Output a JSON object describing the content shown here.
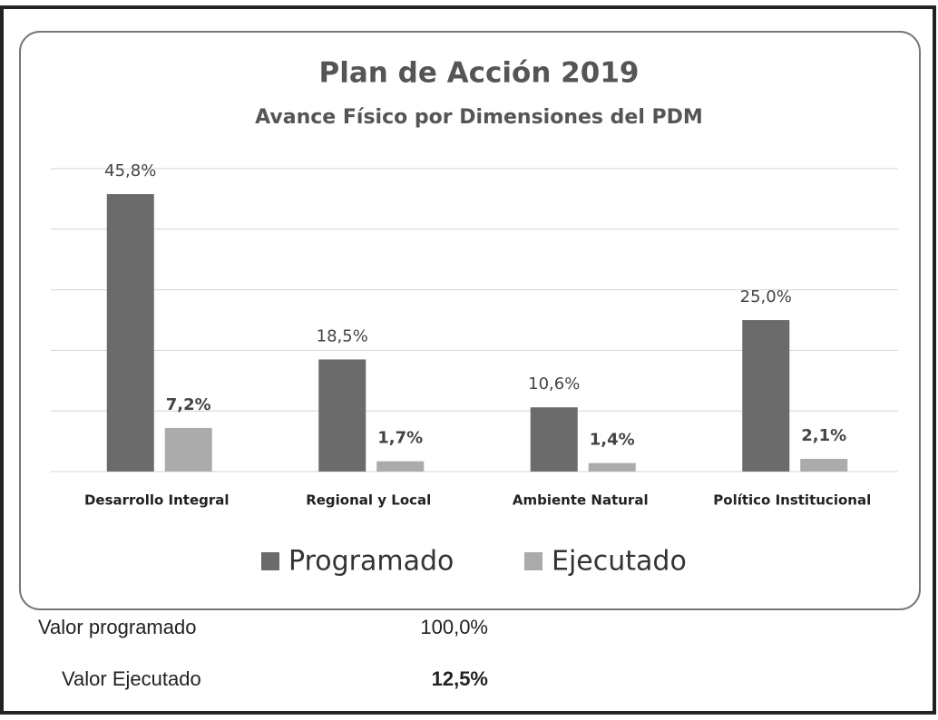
{
  "chart_data": {
    "type": "bar",
    "title": "Plan de Acción 2019",
    "subtitle": "Avance Físico por Dimensiones del PDM",
    "categories": [
      "Desarrollo Integral",
      "Regional y Local",
      "Ambiente Natural",
      "Político Institucional"
    ],
    "series": [
      {
        "name": "Programado",
        "color": "#6b6b6b",
        "values": [
          45.8,
          18.5,
          10.6,
          25.0
        ],
        "value_labels": [
          "45,8%",
          "18,5%",
          "10,6%",
          "25,0%"
        ]
      },
      {
        "name": "Ejecutado",
        "color": "#ababab",
        "values": [
          7.2,
          1.7,
          1.4,
          2.1
        ],
        "value_labels": [
          "7,2%",
          "1,7%",
          "1,4%",
          "2,1%"
        ]
      }
    ],
    "ylim": [
      0,
      50
    ],
    "yticks": [
      0,
      10,
      20,
      30,
      40,
      50
    ],
    "grid": true,
    "legend": "bottom"
  },
  "summary": {
    "rows": [
      [
        "Valor programado",
        "100,0%"
      ],
      [
        "Valor Ejecutado",
        "12,5%"
      ]
    ]
  }
}
